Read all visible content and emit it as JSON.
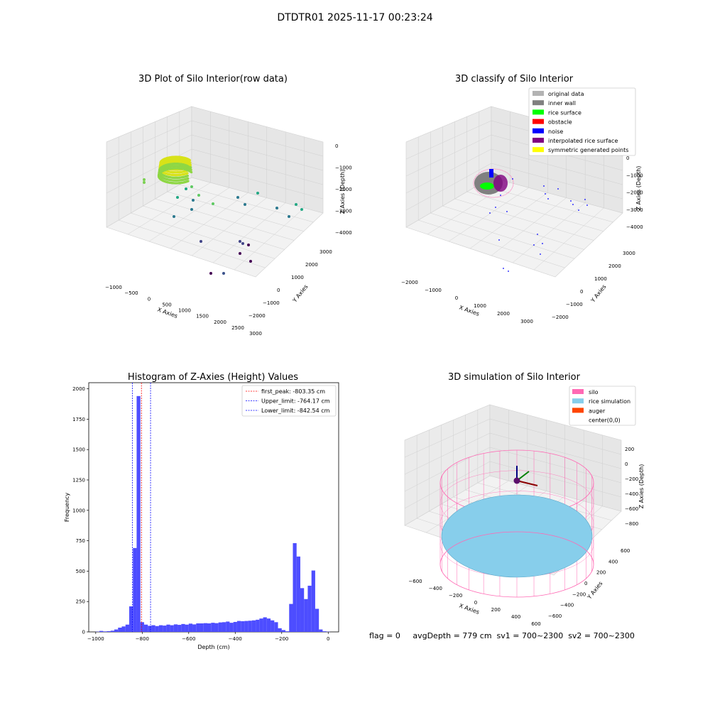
{
  "suptitle": "DTDTR01 2025-11-17 00:23:24",
  "panel1": {
    "title": "3D Plot of Silo Interior(row data)",
    "xlabel": "X Axies",
    "ylabel": "Y Axies",
    "zlabel": "Z Axies (Depth)",
    "xticks": [
      "−1000",
      "−500",
      "0",
      "500",
      "1000",
      "1500",
      "2000",
      "2500",
      "3000"
    ],
    "yticks": [
      "−2000",
      "−1000",
      "0",
      "1000",
      "2000",
      "3000"
    ],
    "zticks": [
      "0",
      "−1000",
      "−2000",
      "−3000",
      "−4000"
    ]
  },
  "panel2": {
    "title": "3D classify of Silo Interior",
    "xlabel": "X Axies",
    "ylabel": "Y Axies",
    "zlabel": "Z Axies (Depth)",
    "xticks": [
      "−2000",
      "−1000",
      "0",
      "1000",
      "2000",
      "3000"
    ],
    "yticks": [
      "−2000",
      "−1000",
      "0",
      "1000",
      "2000",
      "3000"
    ],
    "zticks": [
      "0",
      "−1000",
      "−2000",
      "−3000",
      "−4000"
    ],
    "legend": [
      {
        "label": "original data",
        "color": "#b3b3b3"
      },
      {
        "label": "inner wall",
        "color": "#808080"
      },
      {
        "label": "rice surface",
        "color": "#00ff00"
      },
      {
        "label": "obstacle",
        "color": "#ff0000"
      },
      {
        "label": "noise",
        "color": "#0000ff"
      },
      {
        "label": "interpolated rice surface",
        "color": "#800080"
      },
      {
        "label": "symmetric generated points",
        "color": "#ffff00"
      }
    ]
  },
  "panel3": {
    "title": "Histogram of Z-Axies (Height) Values",
    "xlabel": "Depth (cm)",
    "ylabel": "Frequency",
    "legend": [
      {
        "label": "first_peak: -803.35 cm",
        "color": "#ff0000"
      },
      {
        "label": "Upper_limit: -764.17 cm",
        "color": "#0000ff"
      },
      {
        "label": "Lower_limit: -842.54 cm",
        "color": "#0000ff"
      }
    ]
  },
  "panel4": {
    "title": "3D simulation of Silo Interior",
    "xlabel": "X Axies",
    "ylabel": "Y Axies",
    "zlabel": "Z Axies (Depth)",
    "xticks": [
      "−600",
      "−400",
      "−200",
      "0",
      "200",
      "400",
      "600"
    ],
    "yticks": [
      "−600",
      "−400",
      "−200",
      "0",
      "200",
      "400",
      "600"
    ],
    "zticks": [
      "200",
      "0",
      "−200",
      "−400",
      "−600",
      "−800"
    ],
    "legend": [
      {
        "label": "silo",
        "color": "#ff69b4"
      },
      {
        "label": "rice simulation",
        "color": "#87ceeb"
      },
      {
        "label": "auger",
        "color": "#ff4500"
      },
      {
        "label": "center(0,0)",
        "color": "#ffffff"
      }
    ]
  },
  "footer": "flag = 0     avgDepth = 779 cm  sv1 = 700~2300  sv2 = 700~2300",
  "chart_data": [
    {
      "type": "scatter",
      "title": "3D Plot of Silo Interior(row data)",
      "xlabel": "X Axies",
      "ylabel": "Y Axies",
      "zlabel": "Z Axies (Depth)",
      "xlim": [
        -1200,
        3000
      ],
      "ylim": [
        -2200,
        3300
      ],
      "zlim": [
        -4500,
        200
      ],
      "colormap": "viridis by depth"
    },
    {
      "type": "scatter",
      "title": "3D classify of Silo Interior",
      "xlabel": "X Axies",
      "ylabel": "Y Axies",
      "zlabel": "Z Axies (Depth)",
      "xlim": [
        -2200,
        3500
      ],
      "ylim": [
        -2200,
        3300
      ],
      "zlim": [
        -4500,
        200
      ],
      "series": [
        {
          "name": "original data"
        },
        {
          "name": "inner wall"
        },
        {
          "name": "rice surface"
        },
        {
          "name": "obstacle"
        },
        {
          "name": "noise"
        },
        {
          "name": "interpolated rice surface"
        },
        {
          "name": "symmetric generated points"
        }
      ]
    },
    {
      "type": "bar",
      "title": "Histogram of Z-Axies (Height) Values",
      "xlabel": "Depth (cm)",
      "ylabel": "Frequency",
      "xlim": [
        -1030,
        45
      ],
      "ylim": [
        0,
        2050
      ],
      "xticks": [
        -1000,
        -800,
        -600,
        -400,
        -200,
        0
      ],
      "yticks": [
        0,
        250,
        500,
        750,
        1000,
        1250,
        1500,
        1750,
        2000
      ],
      "bin_width": 16,
      "bin_starts": [
        -1000,
        -984,
        -968,
        -952,
        -936,
        -920,
        -904,
        -888,
        -872,
        -856,
        -840,
        -824,
        -808,
        -792,
        -776,
        -760,
        -744,
        -728,
        -712,
        -696,
        -680,
        -664,
        -648,
        -632,
        -616,
        -600,
        -584,
        -568,
        -552,
        -536,
        -520,
        -504,
        -488,
        -472,
        -456,
        -440,
        -424,
        -408,
        -392,
        -376,
        -360,
        -344,
        -328,
        -312,
        -296,
        -280,
        -264,
        -248,
        -232,
        -216,
        -200,
        -184,
        -168,
        -152,
        -136,
        -120,
        -104,
        -88,
        -72,
        -56,
        -40,
        -24,
        -8
      ],
      "values": [
        2,
        8,
        4,
        6,
        10,
        20,
        35,
        45,
        60,
        210,
        690,
        1940,
        80,
        60,
        50,
        55,
        48,
        55,
        52,
        60,
        55,
        62,
        58,
        65,
        60,
        68,
        62,
        70,
        70,
        72,
        70,
        75,
        72,
        78,
        80,
        85,
        75,
        82,
        90,
        88,
        90,
        92,
        95,
        100,
        110,
        120,
        110,
        95,
        80,
        30,
        15,
        5,
        230,
        730,
        620,
        360,
        270,
        380,
        505,
        190,
        20,
        5,
        2
      ],
      "vlines": [
        {
          "name": "first_peak: -803.35 cm",
          "x": -803.35,
          "color": "#ff0000"
        },
        {
          "name": "Upper_limit: -764.17 cm",
          "x": -764.17,
          "color": "#0000ff"
        },
        {
          "name": "Lower_limit: -842.54 cm",
          "x": -842.54,
          "color": "#0000ff"
        }
      ]
    },
    {
      "type": "area",
      "title": "3D simulation of Silo Interior",
      "xlabel": "X Axies",
      "ylabel": "Y Axies",
      "zlabel": "Z Axies (Depth)",
      "xlim": [
        -700,
        700
      ],
      "ylim": [
        -700,
        700
      ],
      "zlim": [
        -950,
        350
      ],
      "series": [
        {
          "name": "silo"
        },
        {
          "name": "rice simulation"
        },
        {
          "name": "auger"
        },
        {
          "name": "center(0,0)"
        }
      ]
    }
  ]
}
